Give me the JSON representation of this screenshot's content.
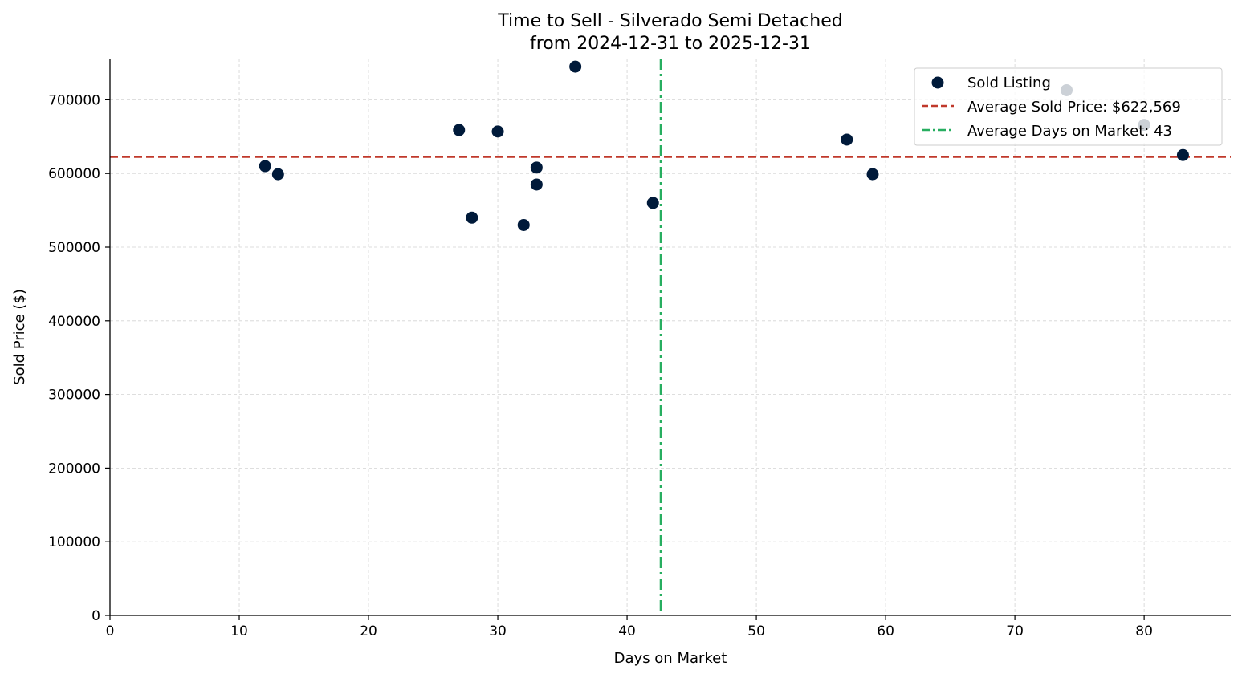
{
  "chart_data": {
    "type": "scatter",
    "title": "Time to Sell - Silverado Semi Detached",
    "subtitle": "from 2024-12-31 to 2025-12-31",
    "xlabel": "Days on Market",
    "ylabel": "Sold Price ($)",
    "xlim": [
      0,
      86.7
    ],
    "ylim": [
      0,
      756000
    ],
    "xticks": [
      0,
      10,
      20,
      30,
      40,
      50,
      60,
      70,
      80
    ],
    "yticks": [
      0,
      100000,
      200000,
      300000,
      400000,
      500000,
      600000,
      700000
    ],
    "grid": true,
    "legend_position": "top-right",
    "series": [
      {
        "name": "Sold Listing",
        "color": "#001a3a",
        "points": [
          {
            "x": 12,
            "y": 610000
          },
          {
            "x": 13,
            "y": 599000
          },
          {
            "x": 27,
            "y": 659000
          },
          {
            "x": 28,
            "y": 540000
          },
          {
            "x": 30,
            "y": 657000
          },
          {
            "x": 32,
            "y": 530000
          },
          {
            "x": 33,
            "y": 608000
          },
          {
            "x": 33,
            "y": 585000
          },
          {
            "x": 36,
            "y": 745000
          },
          {
            "x": 42,
            "y": 560000
          },
          {
            "x": 57,
            "y": 646000
          },
          {
            "x": 59,
            "y": 599000
          },
          {
            "x": 74,
            "y": 713000
          },
          {
            "x": 80,
            "y": 666000
          },
          {
            "x": 83,
            "y": 625000
          }
        ]
      }
    ],
    "reference_lines": [
      {
        "name": "Average Sold Price: $622,569",
        "orientation": "horizontal",
        "value": 622569,
        "color": "#c0392b",
        "style": "dashed"
      },
      {
        "name": "Average Days on Market: 43",
        "orientation": "vertical",
        "value": 42.6,
        "color": "#27ae60",
        "style": "dashdot"
      }
    ]
  }
}
